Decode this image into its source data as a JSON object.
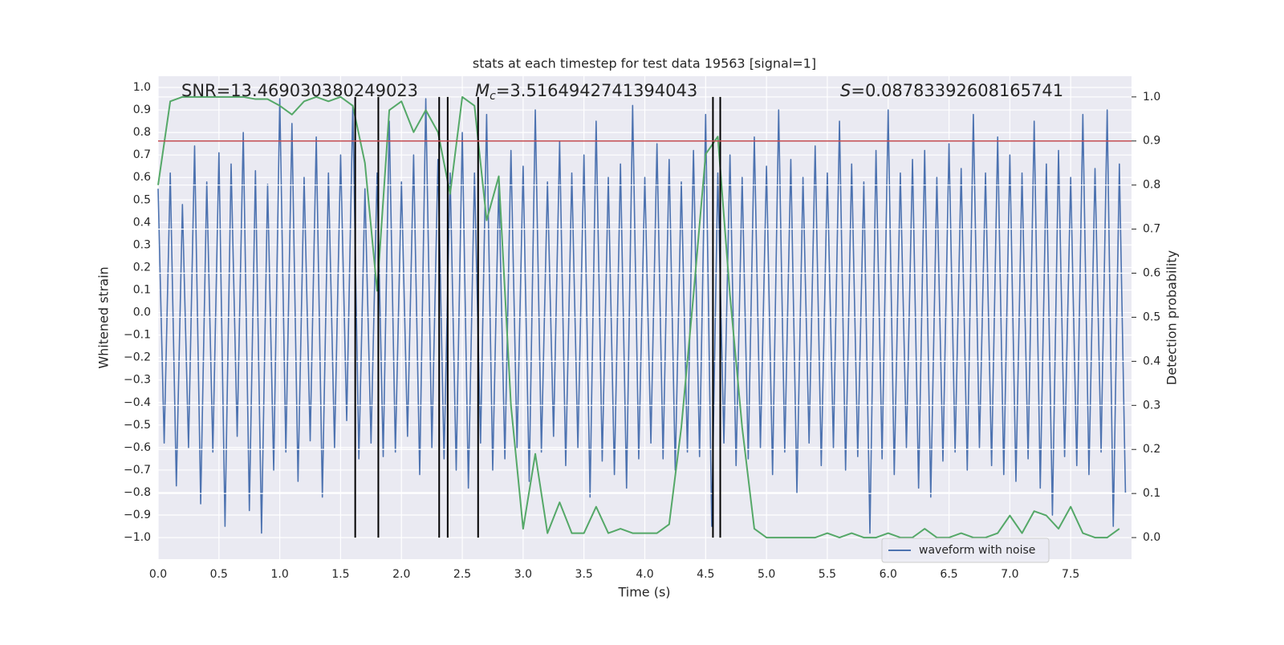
{
  "chart_data": {
    "type": "line",
    "title": "stats at each timestep for test data 19563 [signal=1]",
    "xlabel": "Time (s)",
    "ylabel": "Whitened strain",
    "y2label": "Detection probability",
    "annotations": [
      {
        "text": "SNR=13.469030380249023"
      },
      {
        "symbol": "M",
        "subscript": "c",
        "text": "=3.5164942741394043"
      },
      {
        "symbol": "S",
        "text": "=0.08783392608165741"
      }
    ],
    "xlim": [
      0,
      8.0
    ],
    "ylim": [
      -1.096,
      1.05
    ],
    "y2lim": [
      -0.049,
      1.047
    ],
    "xticks": [
      {
        "value": 0,
        "label": "0.0"
      },
      {
        "value": 0.5,
        "label": "0.5"
      },
      {
        "value": 1,
        "label": "1.0"
      },
      {
        "value": 1.5,
        "label": "1.5"
      },
      {
        "value": 2,
        "label": "2.0"
      },
      {
        "value": 2.5,
        "label": "2.5"
      },
      {
        "value": 3,
        "label": "3.0"
      },
      {
        "value": 3.5,
        "label": "3.5"
      },
      {
        "value": 4,
        "label": "4.0"
      },
      {
        "value": 4.5,
        "label": "4.5"
      },
      {
        "value": 5,
        "label": "5.0"
      },
      {
        "value": 5.5,
        "label": "5.5"
      },
      {
        "value": 6,
        "label": "6.0"
      },
      {
        "value": 6.5,
        "label": "6.5"
      },
      {
        "value": 7,
        "label": "7.0"
      },
      {
        "value": 7.5,
        "label": "7.5"
      }
    ],
    "yticks": [
      {
        "value": -1,
        "label": "−1.0"
      },
      {
        "value": -0.9,
        "label": "−0.9"
      },
      {
        "value": -0.8,
        "label": "−0.8"
      },
      {
        "value": -0.7,
        "label": "−0.7"
      },
      {
        "value": -0.6,
        "label": "−0.6"
      },
      {
        "value": -0.5,
        "label": "−0.5"
      },
      {
        "value": -0.4,
        "label": "−0.4"
      },
      {
        "value": -0.3,
        "label": "−0.3"
      },
      {
        "value": -0.2,
        "label": "−0.2"
      },
      {
        "value": -0.1,
        "label": "−0.1"
      },
      {
        "value": 0,
        "label": "0.0"
      },
      {
        "value": 0.1,
        "label": "0.1"
      },
      {
        "value": 0.2,
        "label": "0.2"
      },
      {
        "value": 0.3,
        "label": "0.3"
      },
      {
        "value": 0.4,
        "label": "0.4"
      },
      {
        "value": 0.5,
        "label": "0.5"
      },
      {
        "value": 0.6,
        "label": "0.6"
      },
      {
        "value": 0.7,
        "label": "0.7"
      },
      {
        "value": 0.8,
        "label": "0.8"
      },
      {
        "value": 0.9,
        "label": "0.9"
      },
      {
        "value": 1,
        "label": "1.0"
      }
    ],
    "y2ticks": [
      {
        "value": 0,
        "label": "0.0"
      },
      {
        "value": 0.1,
        "label": "0.1"
      },
      {
        "value": 0.2,
        "label": "0.2"
      },
      {
        "value": 0.3,
        "label": "0.3"
      },
      {
        "value": 0.4,
        "label": "0.4"
      },
      {
        "value": 0.5,
        "label": "0.5"
      },
      {
        "value": 0.6,
        "label": "0.6"
      },
      {
        "value": 0.7,
        "label": "0.7"
      },
      {
        "value": 0.8,
        "label": "0.8"
      },
      {
        "value": 0.9,
        "label": "0.9"
      },
      {
        "value": 1,
        "label": "1.0"
      }
    ],
    "grid": true,
    "legend": "lower right",
    "background": "#eaeaf2",
    "series": [
      {
        "name": "waveform with noise",
        "color": "#4c72b0",
        "x": [
          0,
          0.05,
          0.1,
          0.15,
          0.2,
          0.25,
          0.3,
          0.35,
          0.4,
          0.45,
          0.5,
          0.55,
          0.6,
          0.65,
          0.7,
          0.75,
          0.8,
          0.85,
          0.9,
          0.95,
          1,
          1.05,
          1.1,
          1.15,
          1.2,
          1.25,
          1.3,
          1.35,
          1.4,
          1.45,
          1.5,
          1.55,
          1.6,
          1.65,
          1.7,
          1.75,
          1.8,
          1.85,
          1.9,
          1.95,
          2,
          2.05,
          2.1,
          2.15,
          2.2,
          2.25,
          2.3,
          2.35,
          2.4,
          2.45,
          2.5,
          2.55,
          2.6,
          2.65,
          2.7,
          2.75,
          2.8,
          2.85,
          2.9,
          2.95,
          3,
          3.05,
          3.1,
          3.15,
          3.2,
          3.25,
          3.3,
          3.35,
          3.4,
          3.45,
          3.5,
          3.55,
          3.6,
          3.65,
          3.7,
          3.75,
          3.8,
          3.85,
          3.9,
          3.95,
          4,
          4.05,
          4.1,
          4.15,
          4.2,
          4.25,
          4.3,
          4.35,
          4.4,
          4.45,
          4.5,
          4.55,
          4.6,
          4.65,
          4.7,
          4.75,
          4.8,
          4.85,
          4.9,
          4.95,
          5,
          5.05,
          5.1,
          5.15,
          5.2,
          5.25,
          5.3,
          5.35,
          5.4,
          5.45,
          5.5,
          5.55,
          5.6,
          5.65,
          5.7,
          5.75,
          5.8,
          5.85,
          5.9,
          5.95,
          6,
          6.05,
          6.1,
          6.15,
          6.2,
          6.25,
          6.3,
          6.35,
          6.4,
          6.45,
          6.5,
          6.55,
          6.6,
          6.65,
          6.7,
          6.75,
          6.8,
          6.85,
          6.9,
          6.95,
          7,
          7.05,
          7.1,
          7.15,
          7.2,
          7.25,
          7.3,
          7.35,
          7.4,
          7.45,
          7.5,
          7.55,
          7.6,
          7.65,
          7.7,
          7.75,
          7.8,
          7.85,
          7.9,
          7.95
        ],
        "values": [
          0.55,
          -0.58,
          0.62,
          -0.77,
          0.48,
          -0.6,
          0.74,
          -0.85,
          0.58,
          -0.62,
          0.71,
          -0.95,
          0.66,
          -0.55,
          0.8,
          -0.88,
          0.63,
          -0.98,
          0.57,
          -0.7,
          0.95,
          -0.62,
          0.84,
          -0.75,
          0.6,
          -0.57,
          0.78,
          -0.82,
          0.62,
          -0.6,
          0.7,
          -0.48,
          0.92,
          -0.65,
          0.55,
          -0.58,
          0.62,
          -0.64,
          0.85,
          -0.62,
          0.58,
          -0.55,
          0.7,
          -0.72,
          0.95,
          -0.6,
          0.68,
          -0.65,
          0.62,
          -0.7,
          0.8,
          -0.78,
          0.62,
          -0.58,
          0.88,
          -0.7,
          0.58,
          -0.65,
          0.72,
          -0.6,
          0.65,
          -0.75,
          0.9,
          -0.62,
          0.58,
          -0.55,
          0.76,
          -0.68,
          0.62,
          -0.6,
          0.7,
          -0.82,
          0.85,
          -0.66,
          0.6,
          -0.72,
          0.66,
          -0.78,
          0.92,
          -0.65,
          0.6,
          -0.58,
          0.75,
          -0.65,
          0.68,
          -0.7,
          0.58,
          -0.62,
          0.72,
          -0.64,
          0.88,
          -0.95,
          0.62,
          -0.58,
          0.7,
          -0.68,
          0.6,
          -0.65,
          0.78,
          -0.6,
          0.65,
          -0.72,
          0.9,
          -0.62,
          0.68,
          -0.8,
          0.6,
          -0.58,
          0.74,
          -0.68,
          0.62,
          -0.6,
          0.85,
          -0.7,
          0.66,
          -0.64,
          0.58,
          -0.98,
          0.72,
          -0.65,
          0.9,
          -0.72,
          0.62,
          -0.6,
          0.68,
          -0.78,
          0.72,
          -0.82,
          0.6,
          -0.66,
          0.75,
          -0.62,
          0.64,
          -0.7,
          0.88,
          -0.6,
          0.62,
          -0.68,
          0.78,
          -0.72,
          0.7,
          -0.75,
          0.62,
          -0.65,
          0.85,
          -0.78,
          0.66,
          -0.9,
          0.72,
          -0.64,
          0.6,
          -0.68,
          0.88,
          -0.72,
          0.64,
          -0.62,
          0.9,
          -0.95,
          0.66,
          -0.8
        ]
      },
      {
        "color": "#55a868",
        "axis": "y2",
        "x": [
          0,
          0.1,
          0.2,
          0.3,
          0.4,
          0.5,
          0.6,
          0.7,
          0.8,
          0.9,
          1,
          1.1,
          1.2,
          1.3,
          1.4,
          1.5,
          1.6,
          1.7,
          1.8,
          1.9,
          2,
          2.1,
          2.2,
          2.3,
          2.4,
          2.5,
          2.6,
          2.7,
          2.8,
          2.9,
          3,
          3.1,
          3.2,
          3.3,
          3.4,
          3.5,
          3.6,
          3.7,
          3.8,
          3.9,
          4,
          4.1,
          4.2,
          4.3,
          4.4,
          4.5,
          4.6,
          4.7,
          4.8,
          4.9,
          5,
          5.1,
          5.2,
          5.3,
          5.4,
          5.5,
          5.6,
          5.7,
          5.8,
          5.9,
          6,
          6.1,
          6.2,
          6.3,
          6.4,
          6.5,
          6.6,
          6.7,
          6.8,
          6.9,
          7,
          7.1,
          7.2,
          7.3,
          7.4,
          7.5,
          7.6,
          7.7,
          7.8,
          7.9
        ],
        "values": [
          0.8,
          0.99,
          1.0,
          1.0,
          1.0,
          1.0,
          1.0,
          1.0,
          0.995,
          0.995,
          0.98,
          0.96,
          0.99,
          1.0,
          0.99,
          1.0,
          0.98,
          0.85,
          0.56,
          0.97,
          0.99,
          0.92,
          0.97,
          0.92,
          0.78,
          1.0,
          0.98,
          0.72,
          0.82,
          0.3,
          0.02,
          0.19,
          0.01,
          0.08,
          0.01,
          0.01,
          0.07,
          0.01,
          0.02,
          0.01,
          0.01,
          0.01,
          0.03,
          0.25,
          0.55,
          0.87,
          0.91,
          0.55,
          0.25,
          0.02,
          0.0,
          0.0,
          0.0,
          0.0,
          0.0,
          0.01,
          0.0,
          0.01,
          0.0,
          0.0,
          0.01,
          0.0,
          0.0,
          0.02,
          0.0,
          0.0,
          0.01,
          0.0,
          0.0,
          0.01,
          0.05,
          0.01,
          0.06,
          0.05,
          0.02,
          0.07,
          0.01,
          0.0,
          0.0,
          0.02
        ]
      }
    ],
    "vlines": {
      "x": [
        1.62,
        1.81,
        2.31,
        2.38,
        2.63,
        4.56,
        4.62
      ],
      "ymin": 0,
      "ymax": 1,
      "color": "#000000",
      "axis": "y2"
    },
    "hline": {
      "y": 0.9,
      "color": "#c44e52",
      "axis": "y2"
    }
  }
}
